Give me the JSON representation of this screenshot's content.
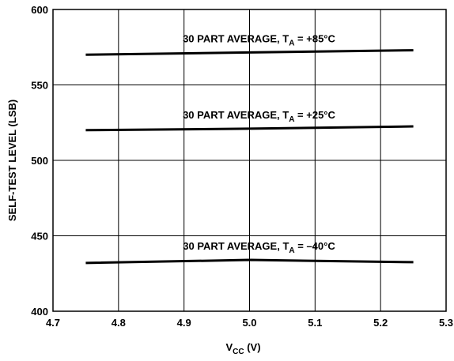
{
  "chart_data": {
    "type": "line",
    "xlabel": {
      "text": "V",
      "sub": "CC",
      "tail": " (V)"
    },
    "ylabel": "SELF-TEST LEVEL (LSB)",
    "xlim": [
      4.7,
      5.3
    ],
    "xticks": [
      4.7,
      4.8,
      4.9,
      {
        "value": 5.0,
        "label": "5.0"
      },
      5.1,
      5.2,
      5.3
    ],
    "ylim": [
      400,
      600
    ],
    "yticks": [
      400,
      450,
      500,
      550,
      600
    ],
    "grid": true,
    "series": [
      {
        "color": "#000000",
        "x": [
          4.75,
          5.0,
          5.25
        ],
        "values": [
          570,
          571.5,
          573
        ]
      },
      {
        "color": "#000000",
        "x": [
          4.75,
          5.0,
          5.25
        ],
        "values": [
          520,
          521,
          522.5
        ]
      },
      {
        "color": "#000000",
        "x": [
          4.75,
          5.0,
          5.25
        ],
        "values": [
          432,
          434,
          432.5
        ]
      }
    ],
    "annotations": [
      {
        "text": "30 PART AVERAGE, T",
        "sub": "A",
        "tail": " = +85°C"
      },
      {
        "text": "30 PART AVERAGE, T",
        "sub": "A",
        "tail": " = +25°C"
      },
      {
        "text": "30 PART AVERAGE, T",
        "sub": "A",
        "tail": " = –40°C"
      }
    ]
  }
}
